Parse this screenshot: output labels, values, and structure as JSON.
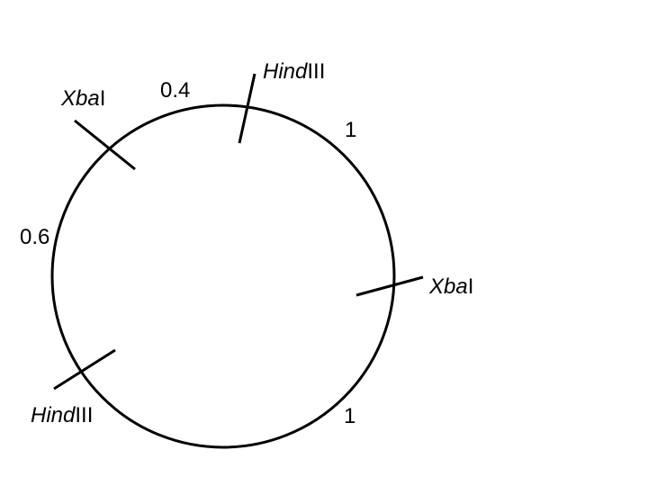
{
  "restriction_map": {
    "sites": [
      {
        "id": "hindiii-top",
        "name_italic": "Hind",
        "name_roman": "III"
      },
      {
        "id": "xbai-right",
        "name_italic": "Xba",
        "name_roman": "I"
      },
      {
        "id": "hindiii-bottom",
        "name_italic": "Hind",
        "name_roman": "III"
      },
      {
        "id": "xbai-left",
        "name_italic": "Xba",
        "name_roman": "I"
      }
    ],
    "distances": [
      {
        "id": "top-to-right",
        "label": "1"
      },
      {
        "id": "right-to-bottom",
        "label": "1"
      },
      {
        "id": "bottom-to-left",
        "label": "0.6"
      },
      {
        "id": "left-to-top",
        "label": "0.4"
      }
    ]
  },
  "colors": {
    "stroke": "#000000",
    "background": "#ffffff"
  }
}
